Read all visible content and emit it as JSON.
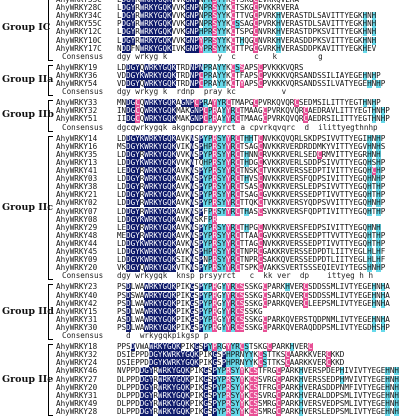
{
  "groups": [
    {
      "label": "Group IC",
      "rows": [
        {
          "name": "AhyWRKY53C",
          "seq": "LDGYRWRKYGQKVVKGNPNPRSYYKCTSKGCLVKKQVERA"
        },
        {
          "name": "AhyWRKY28C",
          "seq": "LDGYRWRKYGQKVVKGNPNPRSYYKCTSKGCPVKKRVERA"
        },
        {
          "name": "AhyWRKY34C",
          "seq": "LDGYRWRKYGQKVVKGNPNPRSYYKCTTVGCPVRKHVERASTDLSAVITTYEGKHNH"
        },
        {
          "name": "AhyWRKY55C",
          "seq": "PDGYRWRKYGQKVVKGNPNPRSYYKCSSAGCPVRKHVERASTDLSAVITTYEGKHNH"
        },
        {
          "name": "AhyWRKY12C",
          "seq": "LDGYRWRKYGQKVVKGNPHPRSYYKCTSPGCNVRKHVERASTDPKSVITTYEGKHNH"
        },
        {
          "name": "AhyWRKY10C",
          "seq": "LDGYRWRKYGQKVVKGNPYPRSYYKCTHQGCNVRKHVERASDDPKSVITTYEGKHNH"
        },
        {
          "name": "AhyWRKY17C",
          "seq": "NDDFNWRKYGQKIVKGNPYPRSYYKCTTPGCGVRKHVERASDDPKAVITTYEGKHEV"
        }
      ],
      "consensus": "dgy wrkyg k           y  c    c   k         g"
    },
    {
      "label": "Group IIa",
      "rows": [
        {
          "name": "AhyWRKY19",
          "seq": "LDDGYQWRKYGQKTRDNPNPRAYYKCSSAPSCPVKKKVQRS"
        },
        {
          "name": "AhyWRKY36",
          "seq": "VDDGYKWRKYGQKTRDNPCPRAYYKCTFAPSCPVKKKVQRSANDSSILIAYEGEHNHP"
        },
        {
          "name": "AhyWRKY54",
          "seq": "VDDGYQWRKYGQKTRDNPCPRAYYKCTYAPSCPVKKKVQRSANDSSILVATYEGEHNHP"
        }
      ],
      "consensus": "dgy wrkyg k  rdnp  pray kc          v"
    },
    {
      "label": "Group IIb",
      "rows": [
        {
          "name": "AhyWRKY33",
          "seq": "MNDGCQWRKYGQKAGNPCPRAYYRCTMAPGCPVRKQVQRCSEDMSILITTYEGTHNHP"
        },
        {
          "name": "AhyWRKY32",
          "seq": "INDGCQWRKYGQKMAKGNPCPRAYYRCTMAAGCPVRKQVQRCAEDRAVLITTYEGTHNHP"
        },
        {
          "name": "AhyWRKY51",
          "seq": "IIDGCQWRKYGQKMAKGNPCPRAYYRCTMAAGCPVRKQVQRCAEDRSILITTYEGTHNHP"
        }
      ],
      "consensus": "dgcqwrkygqk akgnpcprayyrct a cpvrkqvqrc  d  ilittyegthnhp"
    },
    {
      "label": "Group IIc",
      "rows": [
        {
          "name": "AhyWRKY14",
          "seq": "LDDGYKWRKYGQKAVKNSPYPRSYYRCTHHTCNVKKQVQRLSKDPSIVVTTYEGIHNHP"
        },
        {
          "name": "AhyWRKY16",
          "seq": "MSDGYKWRKYGQKVIKNSPHPRSYYRCTSAGCNVKKRVERDRDDMKYVITTYEGVHNHS"
        },
        {
          "name": "AhyWRKY35",
          "seq": "LDDGYRWRKYGQKVVKNSPYPRSYYRCTHNNCRVKKRVERLSEDCRMVITTYEGRHNH"
        },
        {
          "name": "AhyWRKY13",
          "seq": "LDDGYKWRKYGQKVVKNTQHPRSYYRCTHDGCKVKKRVERLSDDPSIVVTTYEGQHSHP"
        },
        {
          "name": "AhyWRKY41",
          "seq": "LEDGYRWRKYGQKAVKNSPYPRSYYRCTNSKCTVKKRVERSSEDPTIVITTYEGQHCHP"
        },
        {
          "name": "AhyWRKY03",
          "seq": "LDDGYRWRKYGQKAVKNSPYPRSYYRCTHVSCNVKKRVERSFQDPSIVITTYEGQHNHP"
        },
        {
          "name": "AhyWRKY38",
          "seq": "LDDGYRWRKYGQKAVKNSPYPRSYYRCTSASCNVKKRVERSLEDPSIVVTTYEGQHTHP"
        },
        {
          "name": "AhyWRKY21",
          "seq": "LDDGYRWRKYGQKAVKNSPYPRSYYRCTSAGCGVKKRVERSSEDPTIVVTTYEGQHTHP"
        },
        {
          "name": "AhyWRKY02",
          "seq": "LDDGYRWRKYGQKAVKNSPYPRSYYRCTTQKCTVKKRVERSYQDPSVVITTYEGQHNHP"
        },
        {
          "name": "AhyWRKY07",
          "seq": "LDDGYRWRKYGQKAVKNSPFPRSYYRCTHASCSVKKRVERSFQDPTIVITTYEGQHTHP"
        },
        {
          "name": "AhyWRKY08",
          "seq": "LDDGYKWRKYGQKAVKNSKFPR"
        },
        {
          "name": "AhyWRKY29",
          "seq": "LEDGYRWRKYGQKAVKNSPYPRSYYRCTHPGCNVKKRVERSFEDPSIVITTYEGQHNH"
        },
        {
          "name": "AhyWRKY48",
          "seq": "MEDGYRWRKYGQKAVKNSPYPRSYYRCTTAACGVKKRVERSSEDPTTVVTTYEGQHTHP"
        },
        {
          "name": "AhyWRKY44",
          "seq": "LDDGYKWRKYGQKAVKNSPYPRSYYRCTTAGCNVKKRVERSSEDPTIVVTTYEGQHTHP"
        },
        {
          "name": "AhyWRKY45",
          "seq": "LDDGYKWRKYGQKAVKNSPHPRSYYRCTNPRCGAKKRVERSSEDPDTLIITYEGLHLHF"
        },
        {
          "name": "AhyWRKY09",
          "seq": "LDDGYKWRKYGQKSIKNSPNPRSYYRCTNPRCSAKKQVERSSEDPDTLIITYEGLHLHF"
        },
        {
          "name": "AhyWRKY20",
          "seq": "VKDGYQWRKYGQKVTKNSPYPRSYYRCTSPKCVAKKSVERTSSSEQIEVIYTEGSHNHP"
        }
      ],
      "consensus": "dgy wrkygqk  knsp prsyyrct   c  kk ver  dp    ittyeg h h"
    },
    {
      "label": "Group IId",
      "rows": [
        {
          "name": "AhyWRKY23",
          "seq": "PSDLWAWRKYGQKPIKGSPYPRGYYRCSSSKGCPARKHVERCSDDSSMLIVTYEGEHNHA"
        },
        {
          "name": "AhyWRKY40",
          "seq": "PSDSWAWRKYGQKPIKGSPYPRGYYRCSSSKGCSARKQVERCSDDSSMLIVTYEGEHNHA"
        },
        {
          "name": "AhyWRKY42",
          "seq": "PSDLWAWRKYGQKPIKGSPYPRGYYRCSSSKGCPARKQVERCLEEPSMLIVTYEGEHNHA"
        },
        {
          "name": "AhyWRKY15",
          "seq": "PSDLWAWRKYGQKPIKGSPYPRGYYRCSSSKG"
        },
        {
          "name": "AhyWRKY31",
          "seq": "ASDLWAWRKYGQKPIKGSPYPRGYYRCSSSKGCPARKQVERSTQDPNMLIVTYEGEHNHA"
        },
        {
          "name": "AhyWRKY30",
          "seq": "PSDLWAWRKYGQKPIKGSPYPRGYYRCSSSKGCPARKQVERAQDDPSMLIVTYEGDHSHP"
        }
      ],
      "consensus": "  d  wrkygqkpikgsp p"
    },
    {
      "label": "Group IIe",
      "rows": [
        {
          "name": "AhyWRKY18",
          "seq": "PPSDVWAWRKYGQKPIKGSPYPRGYYRCSTSKGCPARKHVERC"
        },
        {
          "name": "AhyWRKY32",
          "seq": "DSIEPPDDGYKWRKYGQKPIKGSPHPRNYYKCSTTKSCAARKKVERCKKD"
        },
        {
          "name": "AhyWRKY24",
          "seq": "DSIEPPDDGYKWRKYGQKPIKGSPHPRNYYKCSTTKSCAARKKVERCKKD"
        },
        {
          "name": "AhyWRKY46",
          "seq": "NVPPDDGYRWRKYGQKPIKGSPYPRSYYKCSTFRGCPARKHVERSPDEPHIVIVTYEGEHNH"
        },
        {
          "name": "AhyWRKY27",
          "seq": "DLPPDDGYRWRKYGQKPIKGSPYPRSYYKCSSVRGCPARKHVERSSEDPHMVIVTYEGEHNH"
        },
        {
          "name": "AhyWRKY20",
          "seq": "DLPPDDGYRWRKYGQKPIKGSPYPRSYYKCSTFRGCPARKHVERASDDPNMFIVTYEGEHNH"
        },
        {
          "name": "AhyWRKY31",
          "seq": "DLPPDDGYRWRKYGQKPIKGSPYPRSYYKCSSVRGCPARKHVERALDDPSMLIVTYEGEHNH"
        },
        {
          "name": "AhyWRKY49",
          "seq": "DLPPDDGYRWRKYGQKPIKGSPYPRSYYKCSSMRGCPARKHVERSVEDPSMLIVTYEGEHNH"
        },
        {
          "name": "AhyWRKY28",
          "seq": "DLPPDDGYRWRKYGQKPIKGSPYPRSYYKCSSMRGCPARKHVERSLEDPSMLIVTYEGEHNH"
        }
      ],
      "consensus": ""
    }
  ],
  "colors": {
    "identical": "#0e1a6b",
    "similar_high": "#e84f95",
    "similar_low": "#67d9ea"
  }
}
